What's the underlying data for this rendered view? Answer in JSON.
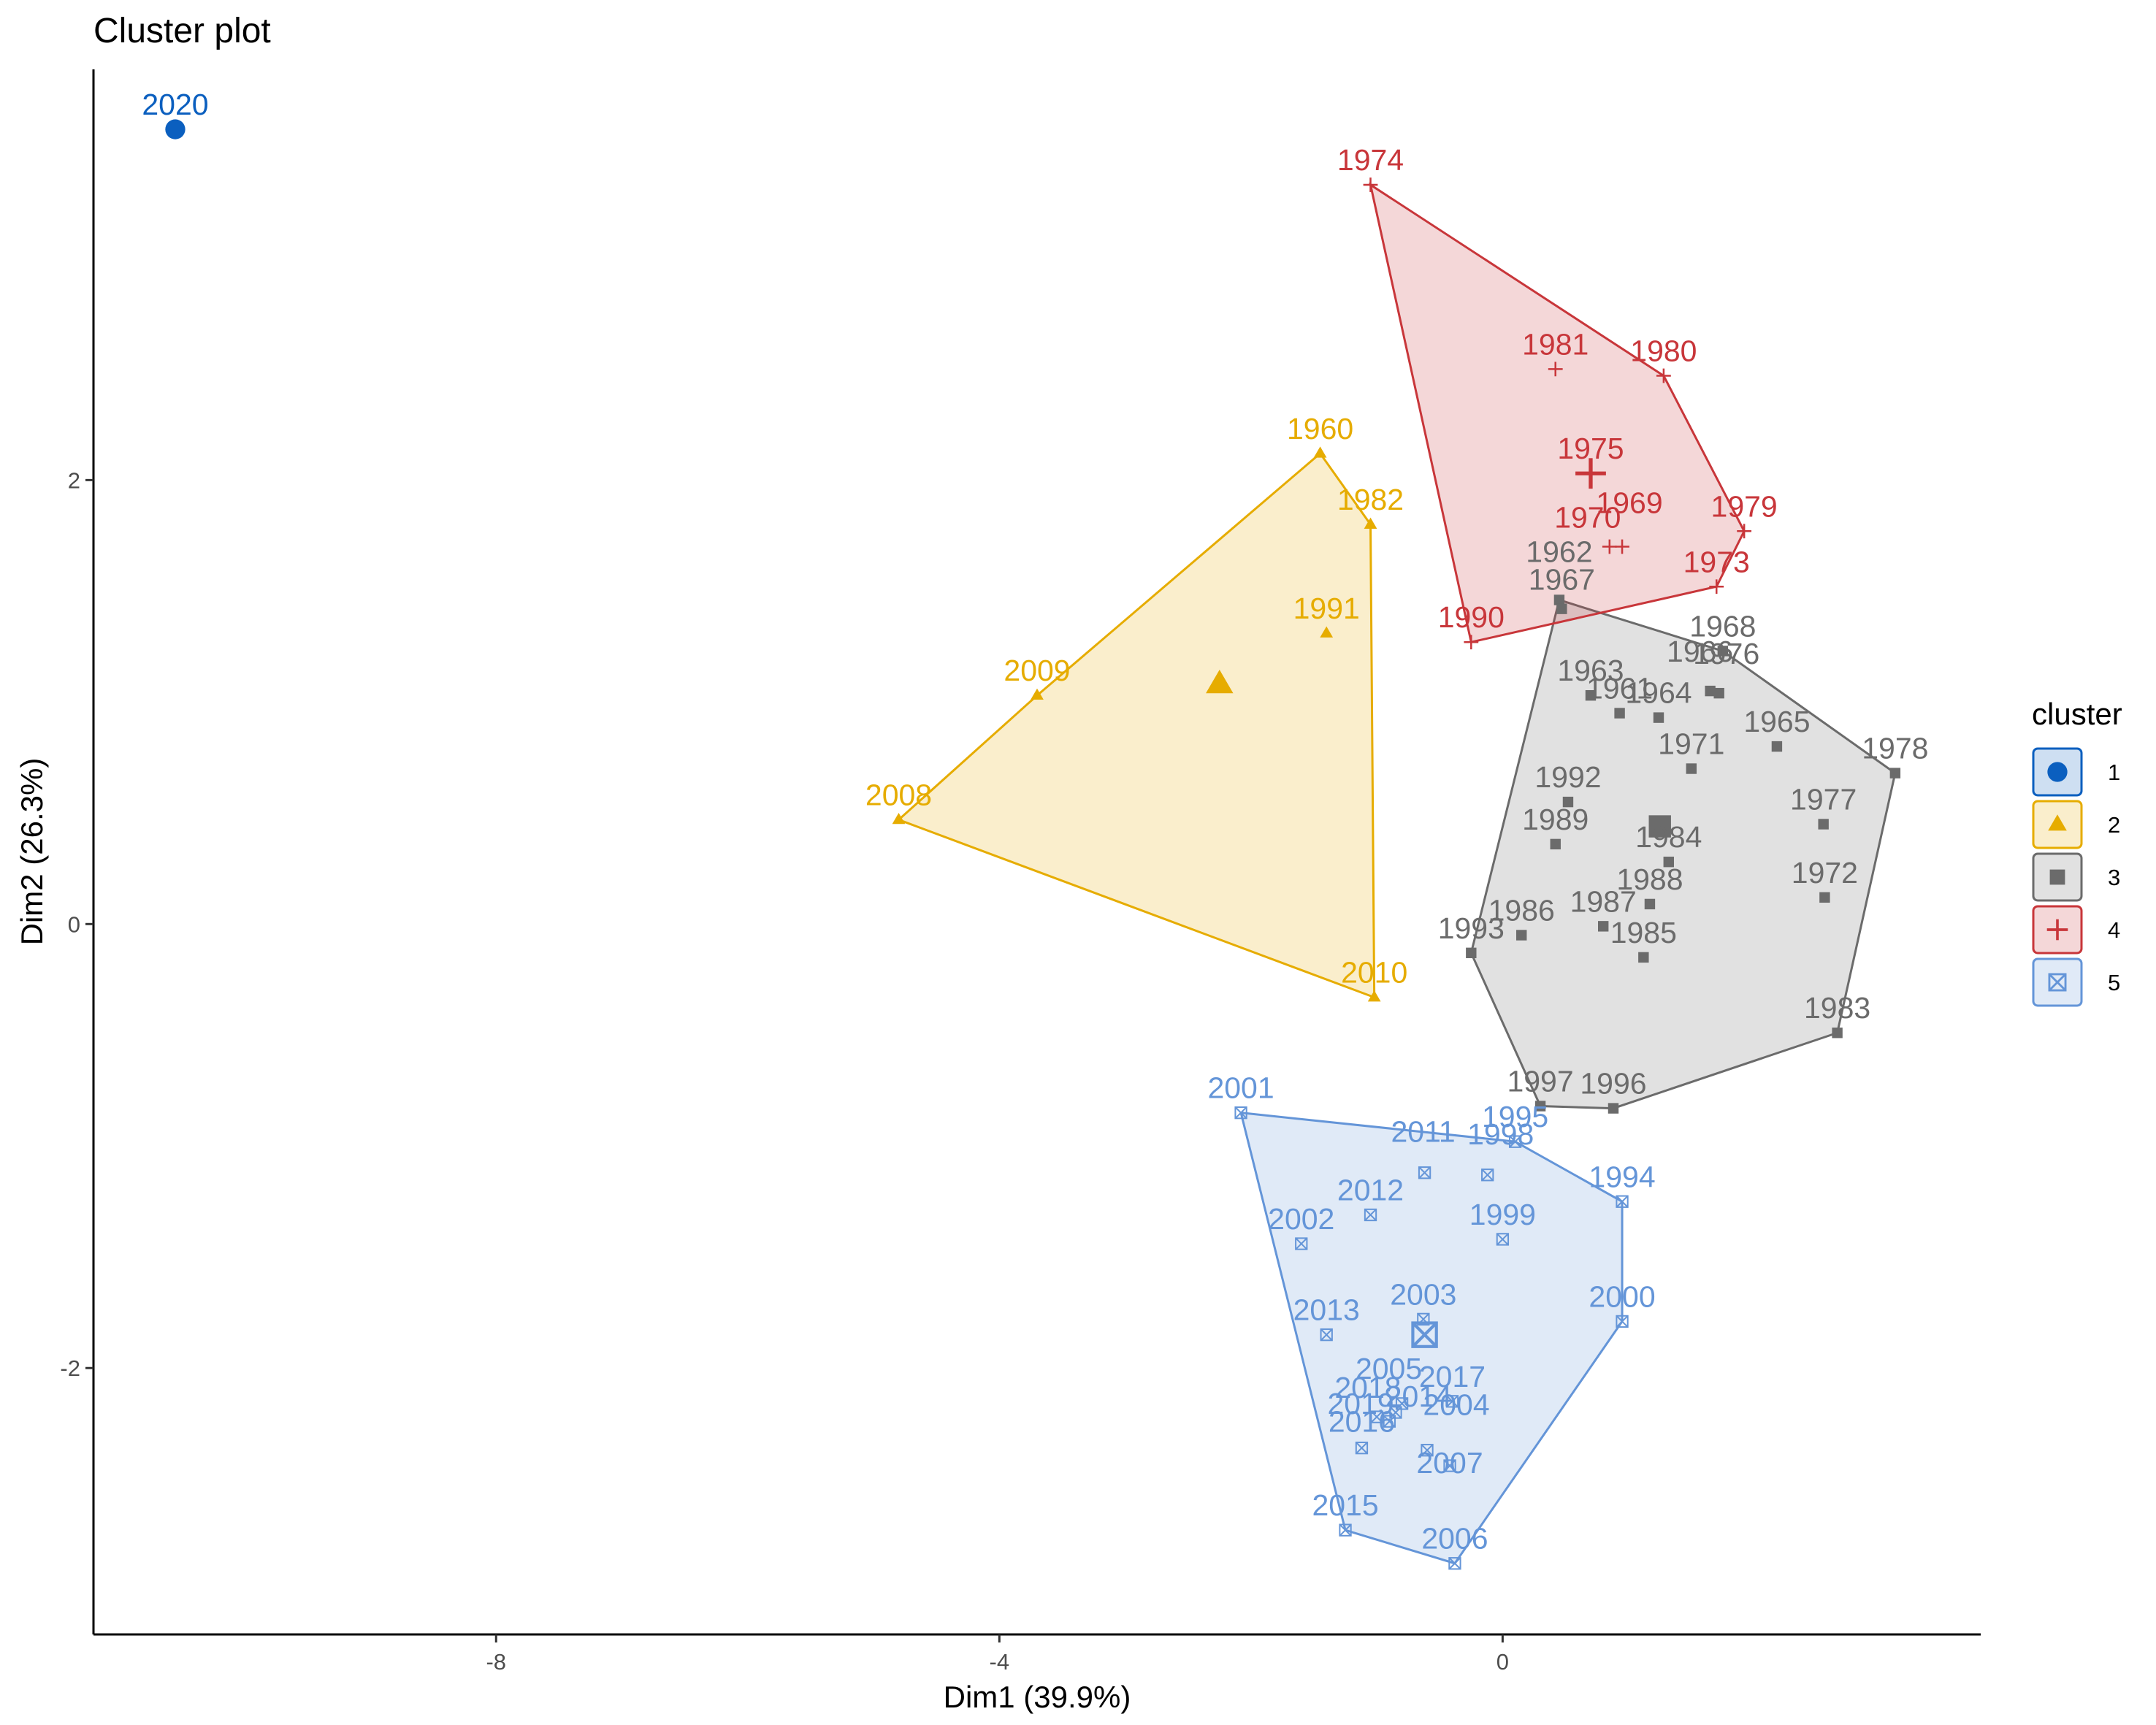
{
  "chart_data": {
    "type": "scatter",
    "title": "Cluster plot",
    "xlabel": "Dim1 (39.9%)",
    "ylabel": "Dim2 (26.3%)",
    "xlim": [
      -11.2,
      3.8
    ],
    "ylim": [
      -3.2,
      3.85
    ],
    "xticks": [
      -8,
      -4,
      0
    ],
    "yticks": [
      -2,
      0,
      2
    ],
    "tick_labels": {
      "x": [
        "-8",
        "-4",
        "0"
      ],
      "y": [
        "-2",
        "0",
        "2"
      ]
    },
    "grid": false,
    "legend": {
      "title": "cluster",
      "position": "right",
      "entries": [
        "1",
        "2",
        "3",
        "4",
        "5"
      ]
    },
    "clusters": [
      {
        "id": "1",
        "color": "#0b5fbf",
        "shape": "circle",
        "points": [
          {
            "label": "2020",
            "x": -10.55,
            "y": 3.58
          }
        ],
        "hull": [
          "2020"
        ],
        "center": null
      },
      {
        "id": "2",
        "color": "#e6ac00",
        "shape": "triangle",
        "points": [
          {
            "label": "1960",
            "x": -1.45,
            "y": 2.12
          },
          {
            "label": "1982",
            "x": -1.05,
            "y": 1.8
          },
          {
            "label": "1991",
            "x": -1.4,
            "y": 1.31
          },
          {
            "label": "2009",
            "x": -3.7,
            "y": 1.03
          },
          {
            "label": "2008",
            "x": -4.8,
            "y": 0.47
          },
          {
            "label": "2010",
            "x": -1.02,
            "y": -0.33
          }
        ],
        "hull": [
          "1960",
          "1982",
          "2010",
          "2008",
          "2009"
        ],
        "center": {
          "x": -2.25,
          "y": 1.08
        }
      },
      {
        "id": "3",
        "color": "#6b6b6b",
        "shape": "square",
        "points": [
          {
            "label": "1962",
            "x": 0.45,
            "y": 1.46
          },
          {
            "label": "1967",
            "x": 0.47,
            "y": 1.42
          },
          {
            "label": "1968",
            "x": 1.75,
            "y": 1.23
          },
          {
            "label": "1966",
            "x": 1.65,
            "y": 1.05
          },
          {
            "label": "1976",
            "x": 1.72,
            "y": 1.04
          },
          {
            "label": "1963",
            "x": 0.7,
            "y": 1.03
          },
          {
            "label": "1961",
            "x": 0.93,
            "y": 0.95
          },
          {
            "label": "1964",
            "x": 1.24,
            "y": 0.93
          },
          {
            "label": "1965",
            "x": 2.18,
            "y": 0.8
          },
          {
            "label": "1978",
            "x": 3.12,
            "y": 0.68
          },
          {
            "label": "1971",
            "x": 1.5,
            "y": 0.7
          },
          {
            "label": "1992",
            "x": 0.52,
            "y": 0.55
          },
          {
            "label": "1977",
            "x": 2.55,
            "y": 0.45
          },
          {
            "label": "1989",
            "x": 0.42,
            "y": 0.36
          },
          {
            "label": "1984",
            "x": 1.32,
            "y": 0.28
          },
          {
            "label": "1972",
            "x": 2.56,
            "y": 0.12
          },
          {
            "label": "1988",
            "x": 1.17,
            "y": 0.09
          },
          {
            "label": "1987",
            "x": 0.8,
            "y": -0.01
          },
          {
            "label": "1986",
            "x": 0.15,
            "y": -0.05
          },
          {
            "label": "1993",
            "x": -0.25,
            "y": -0.13
          },
          {
            "label": "1985",
            "x": 1.12,
            "y": -0.15
          },
          {
            "label": "1983",
            "x": 2.66,
            "y": -0.49
          },
          {
            "label": "1997",
            "x": 0.3,
            "y": -0.82
          },
          {
            "label": "1996",
            "x": 0.88,
            "y": -0.83
          }
        ],
        "hull": [
          "1962",
          "1968",
          "1978",
          "1983",
          "1996",
          "1997",
          "1993"
        ],
        "center": {
          "x": 1.25,
          "y": 0.44
        }
      },
      {
        "id": "4",
        "color": "#c8363a",
        "shape": "cross",
        "points": [
          {
            "label": "1974",
            "x": -1.05,
            "y": 3.33
          },
          {
            "label": "1981",
            "x": 0.42,
            "y": 2.5
          },
          {
            "label": "1980",
            "x": 1.28,
            "y": 2.47
          },
          {
            "label": "1975",
            "x": 0.7,
            "y": 2.03
          },
          {
            "label": "1979",
            "x": 1.92,
            "y": 1.77
          },
          {
            "label": "1969",
            "x": 0.95,
            "y": 1.7
          },
          {
            "label": "1970",
            "x": 0.85,
            "y": 1.7
          },
          {
            "label": "1973",
            "x": 1.7,
            "y": 1.52
          },
          {
            "label": "1990",
            "x": -0.25,
            "y": 1.27
          }
        ],
        "hull": [
          "1974",
          "1980",
          "1979",
          "1973",
          "1990"
        ],
        "center": {
          "x": 0.7,
          "y": 2.03
        }
      },
      {
        "id": "5",
        "color": "#6495d8",
        "shape": "square-x",
        "points": [
          {
            "label": "2001",
            "x": -2.08,
            "y": -0.85
          },
          {
            "label": "1995",
            "x": 0.1,
            "y": -0.98
          },
          {
            "label": "2011",
            "x": -0.62,
            "y": -1.12
          },
          {
            "label": "1998",
            "x": -0.12,
            "y": -1.13
          },
          {
            "label": "1994",
            "x": 0.95,
            "y": -1.25
          },
          {
            "label": "2012",
            "x": -1.05,
            "y": -1.31
          },
          {
            "label": "2002",
            "x": -1.6,
            "y": -1.44
          },
          {
            "label": "1999",
            "x": 0.0,
            "y": -1.42
          },
          {
            "label": "2003",
            "x": -0.63,
            "y": -1.78
          },
          {
            "label": "2000",
            "x": 0.95,
            "y": -1.79
          },
          {
            "label": "2013",
            "x": -1.4,
            "y": -1.85
          },
          {
            "label": "2017",
            "x": -0.4,
            "y": -2.15
          },
          {
            "label": "2005",
            "x": -0.8,
            "y": -2.16
          },
          {
            "label": "2018",
            "x": -0.85,
            "y": -2.2
          },
          {
            "label": "2019",
            "x": -1.0,
            "y": -2.22
          },
          {
            "label": "2014",
            "x": -0.9,
            "y": -2.24
          },
          {
            "label": "2004",
            "x": -0.6,
            "y": -2.37
          },
          {
            "label": "2016",
            "x": -1.12,
            "y": -2.36
          },
          {
            "label": "2007",
            "x": -0.42,
            "y": -2.44
          },
          {
            "label": "2015",
            "x": -1.25,
            "y": -2.73
          },
          {
            "label": "2006",
            "x": -0.38,
            "y": -2.88
          }
        ],
        "hull": [
          "2001",
          "1995",
          "1994",
          "2000",
          "2006",
          "2015"
        ],
        "center": {
          "x": -0.62,
          "y": -1.85
        }
      }
    ],
    "label_offsets": {
      "2011": [
        -2,
        -22
      ],
      "1998": [
        18,
        -22
      ],
      "2005": [
        -18,
        -14
      ],
      "2018": [
        -38,
        0
      ],
      "2019": [
        -22,
        16
      ],
      "2014": [
        40,
        0
      ],
      "2016": [
        0,
        -2
      ],
      "2004": [
        40,
        -28
      ],
      "2007": [
        0,
        30
      ],
      "1962": [
        0,
        -32
      ],
      "1967": [
        0,
        -6
      ],
      "1966": [
        -14,
        -20
      ],
      "1976": [
        10,
        -20
      ],
      "1970": [
        -30,
        -6
      ],
      "1969": [
        10,
        -26
      ]
    }
  }
}
